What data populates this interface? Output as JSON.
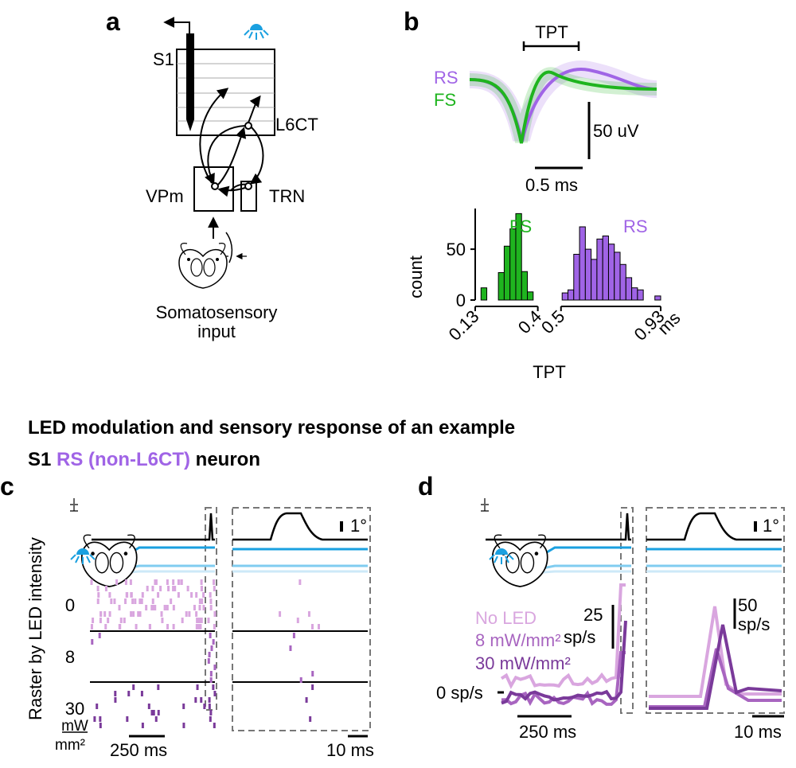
{
  "panel_labels": [
    "a",
    "b",
    "c",
    "d"
  ],
  "diagram": {
    "s1": "S1",
    "l6ct": "L6CT",
    "vpm": "VPm",
    "trn": "TRN",
    "input": [
      "Somatosensory",
      "input"
    ]
  },
  "waveform": {
    "tpt": "TPT",
    "rs": "RS",
    "fs": "FS",
    "scale_v": "50 uV",
    "scale_t": "0.5 ms"
  },
  "chart_data": {
    "type": "histogram",
    "xlabel": "TPT",
    "ylabel": "count",
    "xunit": "ms",
    "bins": [
      0.13,
      0.155,
      0.18,
      0.205,
      0.23,
      0.255,
      0.28,
      0.305,
      0.33,
      0.355,
      0.38,
      0.405,
      0.43,
      0.455,
      0.48,
      0.505,
      0.53,
      0.555,
      0.58,
      0.605,
      0.63,
      0.655,
      0.68,
      0.705,
      0.73,
      0.755,
      0.78,
      0.805,
      0.83,
      0.855,
      0.88,
      0.905,
      0.93
    ],
    "series": [
      {
        "name": "FS",
        "color": "#1fb41f",
        "values": [
          0,
          12,
          0,
          0,
          27,
          53,
          70,
          85,
          28,
          8,
          0,
          0,
          0,
          0,
          0,
          0,
          0,
          0,
          0,
          0,
          0,
          0,
          0,
          0,
          0,
          0,
          0,
          0,
          0,
          0,
          0,
          0
        ]
      },
      {
        "name": "RS",
        "color": "#a064e6",
        "values": [
          0,
          0,
          0,
          0,
          0,
          0,
          0,
          0,
          0,
          0,
          0,
          0,
          0,
          0,
          0,
          7,
          10,
          45,
          72,
          50,
          40,
          60,
          63,
          55,
          47,
          35,
          22,
          12,
          10,
          0,
          0,
          4
        ]
      }
    ],
    "xlim": [
      0.13,
      0.93
    ],
    "xticks": [
      0.13,
      0.4,
      0.5,
      0.93
    ],
    "ylim": [
      0,
      90
    ],
    "yticks": [
      0,
      50
    ]
  },
  "lower": {
    "title": [
      "LED modulation and sensory response of an example",
      "S1 ",
      "RS (non-L6CT)",
      " neuron"
    ],
    "raster": {
      "ylabel": "Raster by LED intensity",
      "rows": [
        "0",
        "8",
        "30"
      ],
      "unit": [
        "mW",
        "mm²"
      ],
      "scale_long": "250 ms",
      "scale_short": "10 ms",
      "deflection": "1°"
    },
    "psth": {
      "legend": [
        "No LED",
        "8 mW/mm²",
        "30 mW/mm²"
      ],
      "scale_long": [
        "25",
        "sp/s"
      ],
      "scale_short": [
        "50",
        "sp/s"
      ],
      "zero": "0 sp/s",
      "time_long": "250 ms",
      "time_short": "10 ms",
      "deflection": "1°"
    }
  }
}
